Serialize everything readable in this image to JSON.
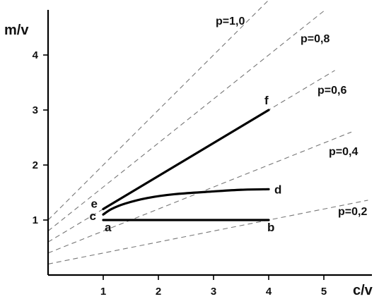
{
  "chart_data": {
    "type": "line",
    "title": "",
    "xlabel": "c/v",
    "ylabel": "m/v",
    "xlim": [
      0,
      6.0
    ],
    "ylim": [
      0,
      5.0
    ],
    "x_ticks": [
      {
        "value": 1,
        "label": "1"
      },
      {
        "value": 2,
        "label": "2"
      },
      {
        "value": 3,
        "label": "3"
      },
      {
        "value": 4,
        "label": "4"
      },
      {
        "value": 5,
        "label": "5"
      }
    ],
    "y_ticks": [
      {
        "value": 1,
        "label": "1"
      },
      {
        "value": 2,
        "label": "2"
      },
      {
        "value": 3,
        "label": "3"
      },
      {
        "value": 4,
        "label": "4"
      }
    ],
    "grid": false,
    "rays": [
      {
        "label": "p=1,0",
        "intercept": 1.0,
        "slope": 1.0,
        "x_end": 4.85
      },
      {
        "label": "p=0,8",
        "intercept": 0.8,
        "slope": 0.8,
        "x_end": 5.0
      },
      {
        "label": "p=0,6",
        "intercept": 0.6,
        "slope": 0.6,
        "x_end": 5.2
      },
      {
        "label": "p=0,4",
        "intercept": 0.4,
        "slope": 0.4,
        "x_end": 5.5
      },
      {
        "label": "p=0,2",
        "intercept": 0.2,
        "slope": 0.2,
        "x_end": 5.8
      }
    ],
    "series": [
      {
        "points": [
          [
            1.0,
            1.0
          ],
          [
            4.0,
            1.0
          ]
        ]
      },
      {
        "points": [
          [
            1.0,
            1.1
          ],
          [
            1.15,
            1.2
          ],
          [
            1.4,
            1.3
          ],
          [
            1.8,
            1.4
          ],
          [
            2.3,
            1.47
          ],
          [
            3.0,
            1.52
          ],
          [
            3.5,
            1.55
          ],
          [
            4.0,
            1.56
          ]
        ],
        "smooth": true
      },
      {
        "points": [
          [
            1.0,
            1.2
          ],
          [
            4.0,
            3.0
          ]
        ]
      }
    ],
    "point_labels": [
      {
        "label": "a",
        "x": 1.0,
        "y": 1.0
      },
      {
        "label": "b",
        "x": 4.0,
        "y": 1.0
      },
      {
        "label": "c",
        "x": 1.0,
        "y": 1.1
      },
      {
        "label": "d",
        "x": 4.0,
        "y": 1.56
      },
      {
        "label": "e",
        "x": 1.0,
        "y": 1.2
      },
      {
        "label": "f",
        "x": 4.0,
        "y": 3.0
      }
    ]
  }
}
